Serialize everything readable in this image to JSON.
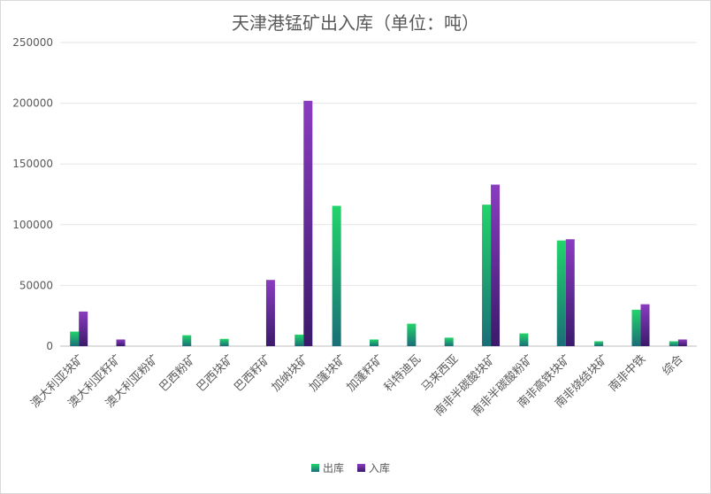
{
  "chart_data": {
    "type": "bar",
    "title": "天津港锰矿出入库（单位：吨）",
    "xlabel": "",
    "ylabel": "",
    "ylim": [
      0,
      250000
    ],
    "yticks": [
      0,
      50000,
      100000,
      150000,
      200000,
      250000
    ],
    "ytick_labels": [
      "0",
      "50000",
      "100000",
      "150000",
      "200000",
      "250000"
    ],
    "grid": true,
    "legend_position": "bottom",
    "categories": [
      "澳大利亚块矿",
      "澳大利亚籽矿",
      "澳大利亚粉矿",
      "巴西粉矿",
      "巴西块矿",
      "巴西籽矿",
      "加纳块矿",
      "加蓬块矿",
      "加蓬籽矿",
      "科特迪瓦",
      "马来西亚",
      "南非半碳酸块矿",
      "南非半碳酸粉矿",
      "南非高铁块矿",
      "南非烧结块矿",
      "南非中铁",
      "综合"
    ],
    "series": [
      {
        "name": "出库",
        "color_top": "#22d46a",
        "color_bottom": "#1a6e78",
        "values": [
          12000,
          0,
          0,
          9000,
          6000,
          0,
          9500,
          115500,
          5500,
          18500,
          7000,
          116500,
          10500,
          87000,
          4000,
          30000,
          4000
        ]
      },
      {
        "name": "入库",
        "color_top": "#8a3cc0",
        "color_bottom": "#3a1a6a",
        "values": [
          28500,
          5500,
          0,
          0,
          0,
          54500,
          202000,
          0,
          0,
          0,
          0,
          133000,
          0,
          88000,
          0,
          34500,
          5500
        ]
      }
    ]
  }
}
